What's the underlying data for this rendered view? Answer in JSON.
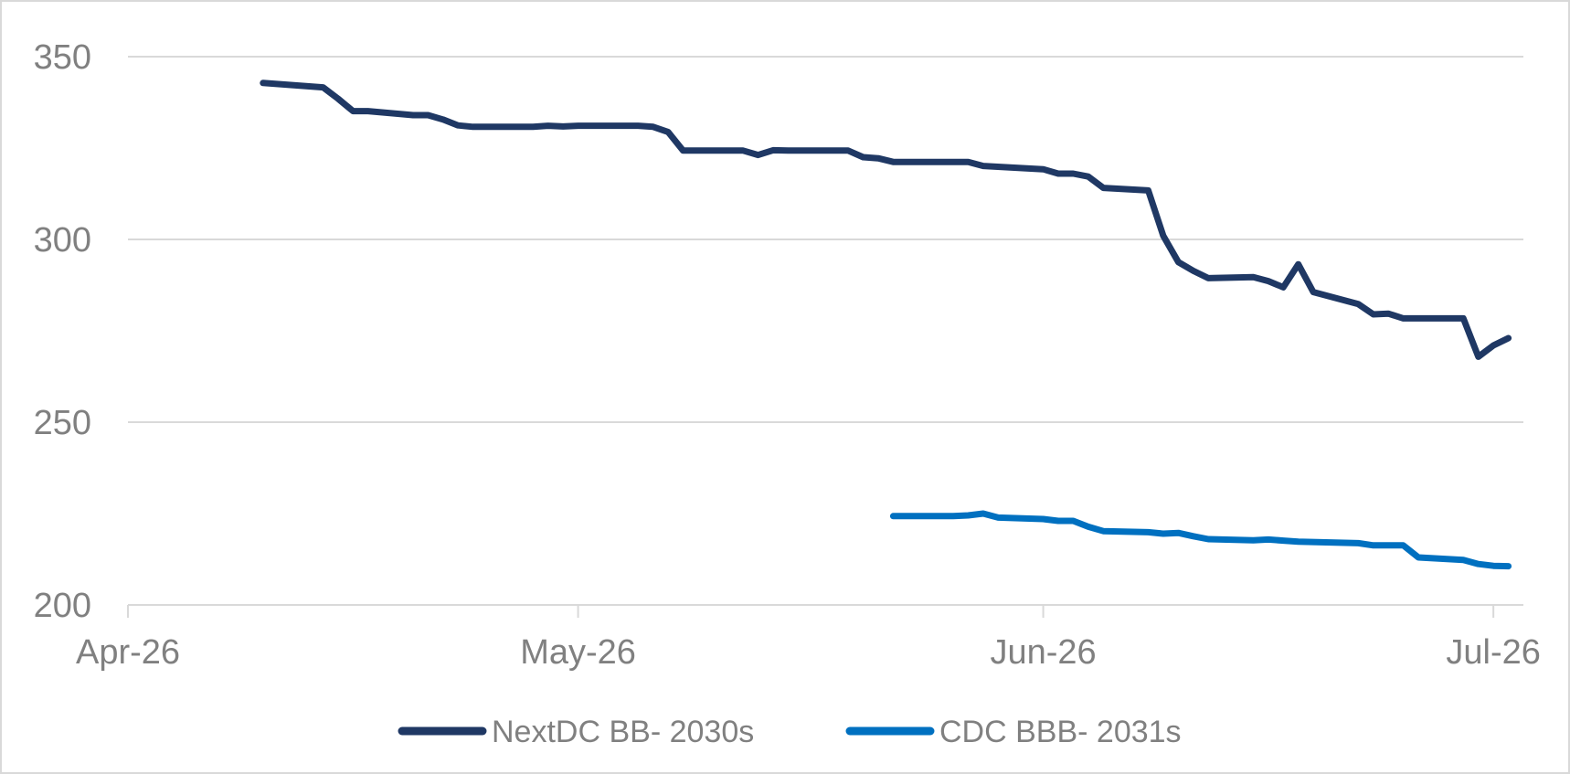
{
  "chart_data": {
    "type": "line",
    "x_axis": {
      "type": "date",
      "range": [
        "2026-04-01",
        "2026-07-03"
      ],
      "tick_values": [
        "2026-04-01",
        "2026-05-01",
        "2026-06-01",
        "2026-07-01"
      ],
      "tick_labels": [
        "Apr-26",
        "May-26",
        "Jun-26",
        "Jul-26"
      ]
    },
    "y_axis": {
      "range": [
        200,
        350
      ],
      "ticks": [
        200,
        250,
        300,
        350
      ],
      "tick_labels": [
        "200",
        "250",
        "300",
        "350"
      ]
    },
    "grid": {
      "horizontal": true,
      "vertical": false
    },
    "legend_position": "bottom",
    "series": [
      {
        "name": "NextDC BB- 2030s",
        "color": "#1f3864",
        "points": [
          [
            "2026-04-10",
            342.8
          ],
          [
            "2026-04-14",
            341.6
          ],
          [
            "2026-04-15",
            338.5
          ],
          [
            "2026-04-16",
            335.1
          ],
          [
            "2026-04-17",
            335.1
          ],
          [
            "2026-04-20",
            334.0
          ],
          [
            "2026-04-21",
            334.0
          ],
          [
            "2026-04-22",
            332.8
          ],
          [
            "2026-04-23",
            331.2
          ],
          [
            "2026-04-24",
            330.8
          ],
          [
            "2026-04-27",
            330.8
          ],
          [
            "2026-04-28",
            330.8
          ],
          [
            "2026-04-29",
            331.1
          ],
          [
            "2026-04-30",
            330.9
          ],
          [
            "2026-05-01",
            331.1
          ],
          [
            "2026-05-04",
            331.1
          ],
          [
            "2026-05-05",
            331.1
          ],
          [
            "2026-05-06",
            330.8
          ],
          [
            "2026-05-07",
            329.4
          ],
          [
            "2026-05-08",
            324.3
          ],
          [
            "2026-05-11",
            324.3
          ],
          [
            "2026-05-12",
            324.3
          ],
          [
            "2026-05-13",
            323.1
          ],
          [
            "2026-05-14",
            324.4
          ],
          [
            "2026-05-15",
            324.3
          ],
          [
            "2026-05-18",
            324.3
          ],
          [
            "2026-05-19",
            324.3
          ],
          [
            "2026-05-20",
            322.5
          ],
          [
            "2026-05-21",
            322.2
          ],
          [
            "2026-05-22",
            321.2
          ],
          [
            "2026-05-25",
            321.2
          ],
          [
            "2026-05-26",
            321.2
          ],
          [
            "2026-05-27",
            321.2
          ],
          [
            "2026-05-28",
            320.1
          ],
          [
            "2026-06-01",
            319.2
          ],
          [
            "2026-06-02",
            318.0
          ],
          [
            "2026-06-03",
            318.0
          ],
          [
            "2026-06-04",
            317.2
          ],
          [
            "2026-06-05",
            314.1
          ],
          [
            "2026-06-08",
            313.4
          ],
          [
            "2026-06-09",
            301.0
          ],
          [
            "2026-06-10",
            293.8
          ],
          [
            "2026-06-11",
            291.4
          ],
          [
            "2026-06-12",
            289.4
          ],
          [
            "2026-06-15",
            289.7
          ],
          [
            "2026-06-16",
            288.6
          ],
          [
            "2026-06-17",
            286.9
          ],
          [
            "2026-06-18",
            293.2
          ],
          [
            "2026-06-19",
            285.6
          ],
          [
            "2026-06-22",
            282.3
          ],
          [
            "2026-06-23",
            279.5
          ],
          [
            "2026-06-24",
            279.7
          ],
          [
            "2026-06-25",
            278.4
          ],
          [
            "2026-06-26",
            278.4
          ],
          [
            "2026-06-29",
            278.4
          ],
          [
            "2026-06-30",
            267.9
          ],
          [
            "2026-07-01",
            271.0
          ],
          [
            "2026-07-02",
            273.0
          ]
        ]
      },
      {
        "name": "CDC BBB- 2031s",
        "color": "#0070c0",
        "points": [
          [
            "2026-05-22",
            224.3
          ],
          [
            "2026-05-25",
            224.3
          ],
          [
            "2026-05-26",
            224.3
          ],
          [
            "2026-05-27",
            224.5
          ],
          [
            "2026-05-28",
            225.0
          ],
          [
            "2026-05-29",
            223.9
          ],
          [
            "2026-06-01",
            223.5
          ],
          [
            "2026-06-02",
            223.0
          ],
          [
            "2026-06-03",
            223.0
          ],
          [
            "2026-06-04",
            221.4
          ],
          [
            "2026-06-05",
            220.2
          ],
          [
            "2026-06-08",
            219.9
          ],
          [
            "2026-06-09",
            219.5
          ],
          [
            "2026-06-10",
            219.7
          ],
          [
            "2026-06-11",
            218.8
          ],
          [
            "2026-06-12",
            218.0
          ],
          [
            "2026-06-15",
            217.7
          ],
          [
            "2026-06-16",
            217.9
          ],
          [
            "2026-06-17",
            217.6
          ],
          [
            "2026-06-18",
            217.3
          ],
          [
            "2026-06-22",
            216.9
          ],
          [
            "2026-06-23",
            216.3
          ],
          [
            "2026-06-24",
            216.3
          ],
          [
            "2026-06-25",
            216.3
          ],
          [
            "2026-06-26",
            213.0
          ],
          [
            "2026-06-29",
            212.3
          ],
          [
            "2026-06-30",
            211.2
          ],
          [
            "2026-07-01",
            210.7
          ],
          [
            "2026-07-02",
            210.6
          ]
        ]
      }
    ]
  }
}
